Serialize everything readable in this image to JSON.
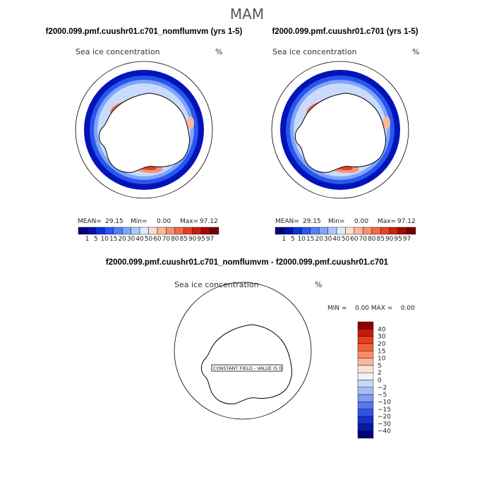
{
  "season": "MAM",
  "panels": [
    {
      "title": "f2000.099.pmf.cuushr01.c701_nomflumvm (yrs 1-5)",
      "variable": "Sea ice concentration",
      "units": "%",
      "stats": {
        "mean_label": "MEAN=",
        "mean": "29.15",
        "min_label": "Min=",
        "min": "0.00",
        "max_label": "Max=",
        "max": "97.12"
      }
    },
    {
      "title": "f2000.099.pmf.cuushr01.c701 (yrs 1-5)",
      "variable": "Sea ice concentration",
      "units": "%",
      "stats": {
        "mean_label": "MEAN=",
        "mean": "29.15",
        "min_label": "Min=",
        "min": "0.00",
        "max_label": "Max=",
        "max": "97.12"
      }
    }
  ],
  "diff_panel": {
    "title": "f2000.099.pmf.cuushr01.c701_nomflumvm - f2000.099.pmf.cuushr01.c701",
    "variable": "Sea ice concentration",
    "units": "%",
    "stats_text": "MIN =    0.00 MAX =    0.00",
    "annotation": "CONSTANT FIELD - VALUE IS 0"
  },
  "chart_data": [
    {
      "type": "heatmap",
      "title": "f2000.099.pmf.cuushr01.c701_nomflumvm (yrs 1-5)",
      "variable": "Sea ice concentration",
      "units": "%",
      "mean": 29.15,
      "min": 0.0,
      "max": 97.12,
      "colorbar_levels": [
        1,
        5,
        10,
        15,
        20,
        30,
        40,
        50,
        60,
        70,
        80,
        85,
        90,
        95,
        97
      ]
    },
    {
      "type": "heatmap",
      "title": "f2000.099.pmf.cuushr01.c701 (yrs 1-5)",
      "variable": "Sea ice concentration",
      "units": "%",
      "mean": 29.15,
      "min": 0.0,
      "max": 97.12,
      "colorbar_levels": [
        1,
        5,
        10,
        15,
        20,
        30,
        40,
        50,
        60,
        70,
        80,
        85,
        90,
        95,
        97
      ]
    },
    {
      "type": "heatmap",
      "title": "f2000.099.pmf.cuushr01.c701_nomflumvm - f2000.099.pmf.cuushr01.c701",
      "variable": "Sea ice concentration",
      "units": "%",
      "min": 0.0,
      "max": 0.0,
      "annotation": "CONSTANT FIELD - VALUE IS 0",
      "colorbar_levels": [
        40,
        30,
        20,
        15,
        10,
        5,
        2,
        0,
        -2,
        -5,
        -10,
        -15,
        -20,
        -30,
        -40
      ]
    }
  ],
  "colors": {
    "scale": [
      "#00007a",
      "#0010b0",
      "#0a30d8",
      "#2a55ee",
      "#4f7ff5",
      "#7ea5f8",
      "#aec8fb",
      "#dde8fc",
      "#fddccb",
      "#f9b89c",
      "#f59273",
      "#ef6a4b",
      "#e34228",
      "#c9200f",
      "#a00a04",
      "#760000"
    ],
    "diff_scale": [
      "#8a0000",
      "#c81a08",
      "#e83c1c",
      "#f46038",
      "#f88c68",
      "#fbb89c",
      "#fde0d0",
      "#f0f4fc",
      "#c8d8fa",
      "#a4bdf6",
      "#7e9cf2",
      "#5778ec",
      "#2f52e2",
      "#1630cc",
      "#061aa8",
      "#000078"
    ]
  }
}
